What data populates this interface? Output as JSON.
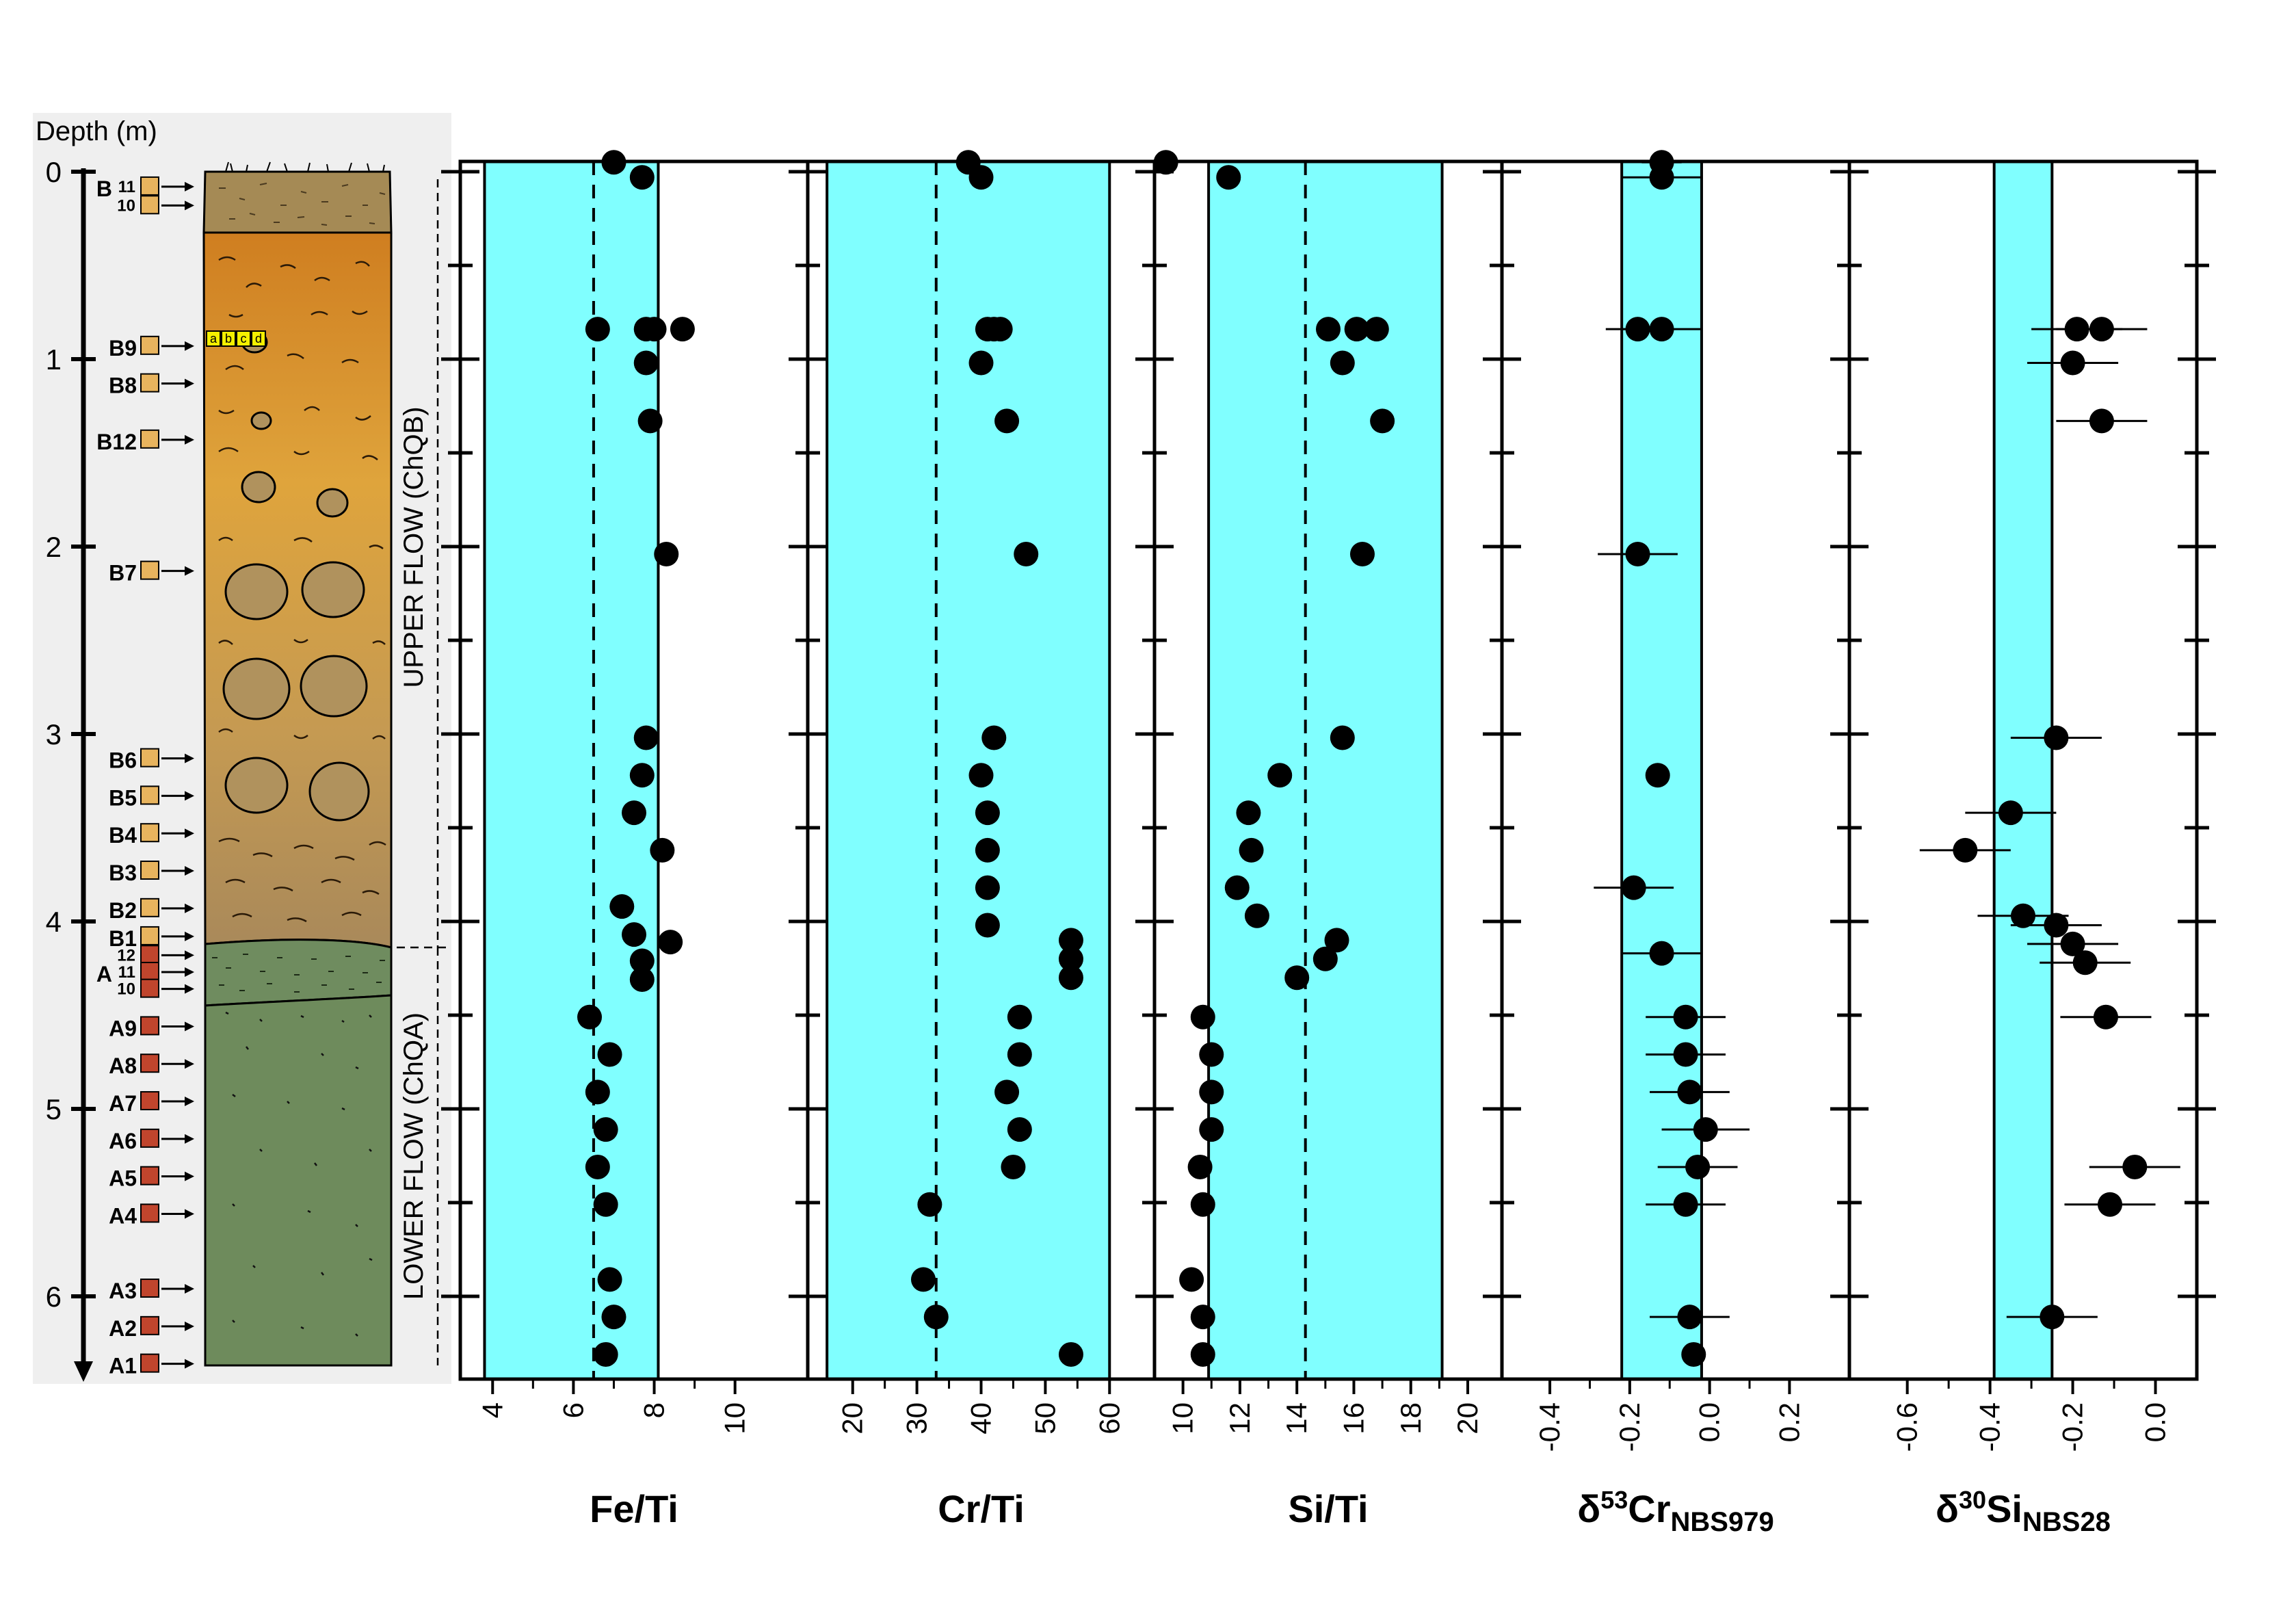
{
  "colors": {
    "band": "#80ffff",
    "axis": "#000000",
    "marker": "#000000",
    "column_bg": "#efefef",
    "sample_b": "#e8b45e",
    "sample_a": "#c0452d",
    "topsoil": "#a58a55",
    "upper_flow_top": "#cf8424",
    "upper_flow_bottom": "#a9895a",
    "transition": "#6f8c5f",
    "lower_flow": "#6e8b5c",
    "clast": "#b0925d"
  },
  "column": {
    "depth_label": "Depth (m)",
    "depth_ticks": [
      "0",
      "1",
      "2",
      "3",
      "4",
      "5",
      "6"
    ],
    "depth_values": [
      0,
      1,
      2,
      3,
      4,
      5,
      6
    ],
    "upper_label": "UPPER FLOW (ChQB)",
    "lower_label": "LOWER FLOW (ChQA)",
    "inset_letters": [
      "a",
      "b",
      "c",
      "d"
    ],
    "samples": [
      {
        "label": "B",
        "sub": "11",
        "depth": 0.08,
        "type": "B"
      },
      {
        "label": "",
        "sub": "10",
        "depth": 0.18,
        "type": "B"
      },
      {
        "label": "B9",
        "sub": "",
        "depth": 0.93,
        "type": "B"
      },
      {
        "label": "B8",
        "sub": "",
        "depth": 1.13,
        "type": "B"
      },
      {
        "label": "B12",
        "sub": "",
        "depth": 1.43,
        "type": "B"
      },
      {
        "label": "B7",
        "sub": "",
        "depth": 2.13,
        "type": "B"
      },
      {
        "label": "B6",
        "sub": "",
        "depth": 3.13,
        "type": "B"
      },
      {
        "label": "B5",
        "sub": "",
        "depth": 3.33,
        "type": "B"
      },
      {
        "label": "B4",
        "sub": "",
        "depth": 3.53,
        "type": "B"
      },
      {
        "label": "B3",
        "sub": "",
        "depth": 3.73,
        "type": "B"
      },
      {
        "label": "B2",
        "sub": "",
        "depth": 3.93,
        "type": "B"
      },
      {
        "label": "B1",
        "sub": "",
        "depth": 4.08,
        "type": "B"
      },
      {
        "label": "",
        "sub": "12",
        "depth": 4.18,
        "type": "A"
      },
      {
        "label": "A",
        "sub": "11",
        "depth": 4.27,
        "type": "A"
      },
      {
        "label": "",
        "sub": "10",
        "depth": 4.36,
        "type": "A"
      },
      {
        "label": "A9",
        "sub": "",
        "depth": 4.56,
        "type": "A"
      },
      {
        "label": "A8",
        "sub": "",
        "depth": 4.76,
        "type": "A"
      },
      {
        "label": "A7",
        "sub": "",
        "depth": 4.96,
        "type": "A"
      },
      {
        "label": "A6",
        "sub": "",
        "depth": 5.16,
        "type": "A"
      },
      {
        "label": "A5",
        "sub": "",
        "depth": 5.36,
        "type": "A"
      },
      {
        "label": "A4",
        "sub": "",
        "depth": 5.56,
        "type": "A"
      },
      {
        "label": "A3",
        "sub": "",
        "depth": 5.96,
        "type": "A"
      },
      {
        "label": "A2",
        "sub": "",
        "depth": 6.16,
        "type": "A"
      },
      {
        "label": "A1",
        "sub": "",
        "depth": 6.36,
        "type": "A"
      }
    ]
  },
  "chart_data": [
    {
      "type": "scatter",
      "title": "",
      "xlabel": "Fe/Ti",
      "xlabel_parts": [
        {
          "t": "Fe/Ti",
          "s": "base"
        }
      ],
      "ylabel": "Depth (m)",
      "xlim": [
        3.2,
        11.8
      ],
      "ylim": [
        6.45,
        -0.05
      ],
      "xticks": [
        4,
        6,
        8,
        10
      ],
      "xtick_labels": [
        "4",
        "6",
        "8",
        "10"
      ],
      "band": [
        3.8,
        8.1
      ],
      "dashed_line": 6.5,
      "grid": false,
      "points": [
        {
          "x": 7.0,
          "y": -0.05
        },
        {
          "x": 7.7,
          "y": 0.03
        },
        {
          "x": 6.6,
          "y": 0.84
        },
        {
          "x": 7.8,
          "y": 0.84
        },
        {
          "x": 8.0,
          "y": 0.84
        },
        {
          "x": 8.7,
          "y": 0.84
        },
        {
          "x": 7.8,
          "y": 1.02
        },
        {
          "x": 7.9,
          "y": 1.33
        },
        {
          "x": 8.3,
          "y": 2.04
        },
        {
          "x": 7.8,
          "y": 3.02
        },
        {
          "x": 7.7,
          "y": 3.22
        },
        {
          "x": 7.5,
          "y": 3.42
        },
        {
          "x": 8.2,
          "y": 3.62
        },
        {
          "x": 7.2,
          "y": 3.92
        },
        {
          "x": 7.5,
          "y": 4.07
        },
        {
          "x": 8.4,
          "y": 4.11
        },
        {
          "x": 7.7,
          "y": 4.21
        },
        {
          "x": 7.7,
          "y": 4.31
        },
        {
          "x": 6.4,
          "y": 4.51
        },
        {
          "x": 6.9,
          "y": 4.71
        },
        {
          "x": 6.6,
          "y": 4.91
        },
        {
          "x": 6.8,
          "y": 5.11
        },
        {
          "x": 6.6,
          "y": 5.31
        },
        {
          "x": 6.8,
          "y": 5.51
        },
        {
          "x": 6.9,
          "y": 5.91
        },
        {
          "x": 7.0,
          "y": 6.11
        },
        {
          "x": 6.8,
          "y": 6.31
        }
      ]
    },
    {
      "type": "scatter",
      "title": "",
      "xlabel": "Cr/Ti",
      "xlabel_parts": [
        {
          "t": "Cr/Ti",
          "s": "base"
        }
      ],
      "ylabel": "Depth (m)",
      "xlim": [
        13,
        67
      ],
      "ylim": [
        6.45,
        -0.05
      ],
      "xticks": [
        20,
        30,
        40,
        50,
        60
      ],
      "xtick_labels": [
        "20",
        "30",
        "40",
        "50",
        "60"
      ],
      "band": [
        16,
        60
      ],
      "dashed_line": 33,
      "grid": false,
      "points": [
        {
          "x": 38,
          "y": -0.05
        },
        {
          "x": 40,
          "y": 0.03
        },
        {
          "x": 41,
          "y": 0.84
        },
        {
          "x": 42,
          "y": 0.84
        },
        {
          "x": 43,
          "y": 0.84
        },
        {
          "x": 40,
          "y": 1.02
        },
        {
          "x": 44,
          "y": 1.33
        },
        {
          "x": 47,
          "y": 2.04
        },
        {
          "x": 42,
          "y": 3.02
        },
        {
          "x": 40,
          "y": 3.22
        },
        {
          "x": 41,
          "y": 3.42
        },
        {
          "x": 41,
          "y": 3.62
        },
        {
          "x": 41,
          "y": 3.82
        },
        {
          "x": 41,
          "y": 4.02
        },
        {
          "x": 54,
          "y": 4.1
        },
        {
          "x": 54,
          "y": 4.2
        },
        {
          "x": 54,
          "y": 4.3
        },
        {
          "x": 46,
          "y": 4.51
        },
        {
          "x": 46,
          "y": 4.71
        },
        {
          "x": 44,
          "y": 4.91
        },
        {
          "x": 46,
          "y": 5.11
        },
        {
          "x": 45,
          "y": 5.31
        },
        {
          "x": 32,
          "y": 5.51
        },
        {
          "x": 31,
          "y": 5.91
        },
        {
          "x": 33,
          "y": 6.11
        },
        {
          "x": 54,
          "y": 6.31
        }
      ]
    },
    {
      "type": "scatter",
      "title": "",
      "xlabel": "Si/Ti",
      "xlabel_parts": [
        {
          "t": "Si/Ti",
          "s": "base"
        }
      ],
      "ylabel": "Depth (m)",
      "xlim": [
        9.0,
        21.2
      ],
      "ylim": [
        6.45,
        -0.05
      ],
      "xticks": [
        10,
        12,
        14,
        16,
        18,
        20
      ],
      "xtick_labels": [
        "10",
        "12",
        "14",
        "16",
        "18",
        "20"
      ],
      "band": [
        10.9,
        19.1
      ],
      "dashed_line": 14.3,
      "grid": false,
      "points": [
        {
          "x": 9.4,
          "y": -0.05
        },
        {
          "x": 11.6,
          "y": 0.03
        },
        {
          "x": 15.1,
          "y": 0.84
        },
        {
          "x": 16.1,
          "y": 0.84
        },
        {
          "x": 16.8,
          "y": 0.84
        },
        {
          "x": 15.6,
          "y": 1.02
        },
        {
          "x": 17.0,
          "y": 1.33
        },
        {
          "x": 16.3,
          "y": 2.04
        },
        {
          "x": 15.6,
          "y": 3.02
        },
        {
          "x": 13.4,
          "y": 3.22
        },
        {
          "x": 12.3,
          "y": 3.42
        },
        {
          "x": 12.4,
          "y": 3.62
        },
        {
          "x": 11.9,
          "y": 3.82
        },
        {
          "x": 12.6,
          "y": 3.97
        },
        {
          "x": 15.4,
          "y": 4.1
        },
        {
          "x": 15.0,
          "y": 4.2
        },
        {
          "x": 14.0,
          "y": 4.3
        },
        {
          "x": 10.7,
          "y": 4.51
        },
        {
          "x": 11.0,
          "y": 4.71
        },
        {
          "x": 11.0,
          "y": 4.91
        },
        {
          "x": 11.0,
          "y": 5.11
        },
        {
          "x": 10.6,
          "y": 5.31
        },
        {
          "x": 10.7,
          "y": 5.51
        },
        {
          "x": 10.3,
          "y": 5.91
        },
        {
          "x": 10.7,
          "y": 6.11
        },
        {
          "x": 10.7,
          "y": 6.31
        }
      ]
    },
    {
      "type": "scatter",
      "title": "",
      "xlabel": "δ53CrNBS979",
      "xlabel_parts": [
        {
          "t": "δ",
          "s": "base"
        },
        {
          "t": "53",
          "s": "sup"
        },
        {
          "t": "Cr",
          "s": "base"
        },
        {
          "t": "NBS979",
          "s": "sub"
        }
      ],
      "ylabel": "Depth (m)",
      "xlim": [
        -0.52,
        0.35
      ],
      "ylim": [
        6.45,
        -0.05
      ],
      "xticks": [
        -0.4,
        -0.2,
        0.0,
        0.2
      ],
      "xtick_labels": [
        "-0.4",
        "-0.2",
        "0.0",
        "0.2"
      ],
      "band": [
        -0.22,
        -0.02
      ],
      "dashed_line": null,
      "grid": false,
      "points": [
        {
          "x": -0.12,
          "y": -0.05,
          "err": 0.05
        },
        {
          "x": -0.12,
          "y": 0.03,
          "err": 0.1
        },
        {
          "x": -0.18,
          "y": 0.84,
          "err": 0.08
        },
        {
          "x": -0.12,
          "y": 0.84,
          "err": 0.1
        },
        {
          "x": -0.18,
          "y": 2.04,
          "err": 0.1
        },
        {
          "x": -0.13,
          "y": 3.22,
          "err": 0.0
        },
        {
          "x": -0.19,
          "y": 3.82,
          "err": 0.1
        },
        {
          "x": -0.12,
          "y": 4.17,
          "err": 0.1
        },
        {
          "x": -0.06,
          "y": 4.51,
          "err": 0.1
        },
        {
          "x": -0.06,
          "y": 4.71,
          "err": 0.1
        },
        {
          "x": -0.05,
          "y": 4.91,
          "err": 0.1
        },
        {
          "x": -0.01,
          "y": 5.11,
          "err": 0.11
        },
        {
          "x": -0.03,
          "y": 5.31,
          "err": 0.1
        },
        {
          "x": -0.06,
          "y": 5.51,
          "err": 0.1
        },
        {
          "x": -0.05,
          "y": 6.11,
          "err": 0.1
        },
        {
          "x": -0.04,
          "y": 6.31,
          "err": 0.0
        }
      ]
    },
    {
      "type": "scatter",
      "title": "",
      "xlabel": "δ30SiNBS28",
      "xlabel_parts": [
        {
          "t": "δ",
          "s": "base"
        },
        {
          "t": "30",
          "s": "sup"
        },
        {
          "t": "Si",
          "s": "base"
        },
        {
          "t": "NBS28",
          "s": "sub"
        }
      ],
      "ylabel": "Depth (m)",
      "xlim": [
        -0.74,
        0.1
      ],
      "ylim": [
        6.45,
        -0.05
      ],
      "xticks": [
        -0.6,
        -0.4,
        -0.2,
        0.0
      ],
      "xtick_labels": [
        "-0.6",
        "-0.4",
        "-0.2",
        "0.0"
      ],
      "band": [
        -0.39,
        -0.25
      ],
      "dashed_line": null,
      "grid": false,
      "points": [
        {
          "x": -0.19,
          "y": 0.84,
          "err": 0.11
        },
        {
          "x": -0.13,
          "y": 0.84,
          "err": 0.11
        },
        {
          "x": -0.2,
          "y": 1.02,
          "err": 0.11
        },
        {
          "x": -0.13,
          "y": 1.33,
          "err": 0.11
        },
        {
          "x": -0.24,
          "y": 3.02,
          "err": 0.11
        },
        {
          "x": -0.35,
          "y": 3.42,
          "err": 0.11
        },
        {
          "x": -0.46,
          "y": 3.62,
          "err": 0.11
        },
        {
          "x": -0.32,
          "y": 3.97,
          "err": 0.11
        },
        {
          "x": -0.24,
          "y": 4.02,
          "err": 0.11
        },
        {
          "x": -0.2,
          "y": 4.12,
          "err": 0.11
        },
        {
          "x": -0.17,
          "y": 4.22,
          "err": 0.11
        },
        {
          "x": -0.12,
          "y": 4.51,
          "err": 0.11
        },
        {
          "x": -0.05,
          "y": 5.31,
          "err": 0.11
        },
        {
          "x": -0.11,
          "y": 5.51,
          "err": 0.11
        },
        {
          "x": -0.25,
          "y": 6.11,
          "err": 0.11
        }
      ]
    }
  ]
}
